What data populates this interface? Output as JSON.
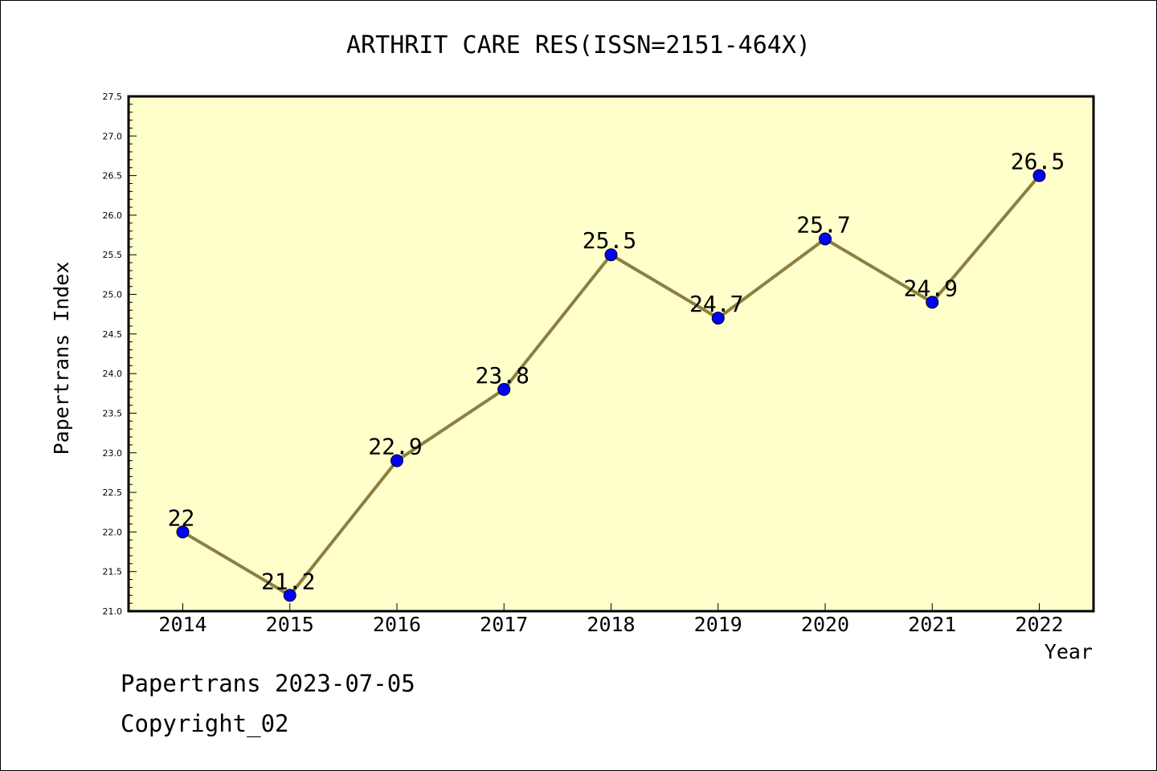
{
  "chart_data": {
    "type": "line",
    "title": "ARTHRIT CARE RES(ISSN=2151-464X)",
    "xlabel": "Year",
    "ylabel": "Papertrans Index",
    "categories": [
      "2014",
      "2015",
      "2016",
      "2017",
      "2018",
      "2019",
      "2020",
      "2021",
      "2022"
    ],
    "series": [
      {
        "values": [
          22,
          21.2,
          22.9,
          23.8,
          25.5,
          24.7,
          25.7,
          24.9,
          26.5
        ],
        "labels": [
          "22",
          "21.2",
          "22.9",
          "23.8",
          "25.5",
          "24.7",
          "25.7",
          "24.9",
          "26.5"
        ]
      }
    ],
    "ylim": [
      21.0,
      27.5
    ],
    "yticks": [
      "21.0",
      "21.5",
      "22.0",
      "22.5",
      "23.0",
      "23.5",
      "24.0",
      "24.5",
      "25.0",
      "25.5",
      "26.0",
      "26.5",
      "27.0",
      "27.5"
    ],
    "grid": false,
    "colors": {
      "plot_background": "#ffffcc",
      "line": "#8b8040",
      "marker": "#0000ff"
    }
  },
  "footer": {
    "date_line": "Papertrans 2023-07-05",
    "copyright_line": "Copyright_02"
  }
}
